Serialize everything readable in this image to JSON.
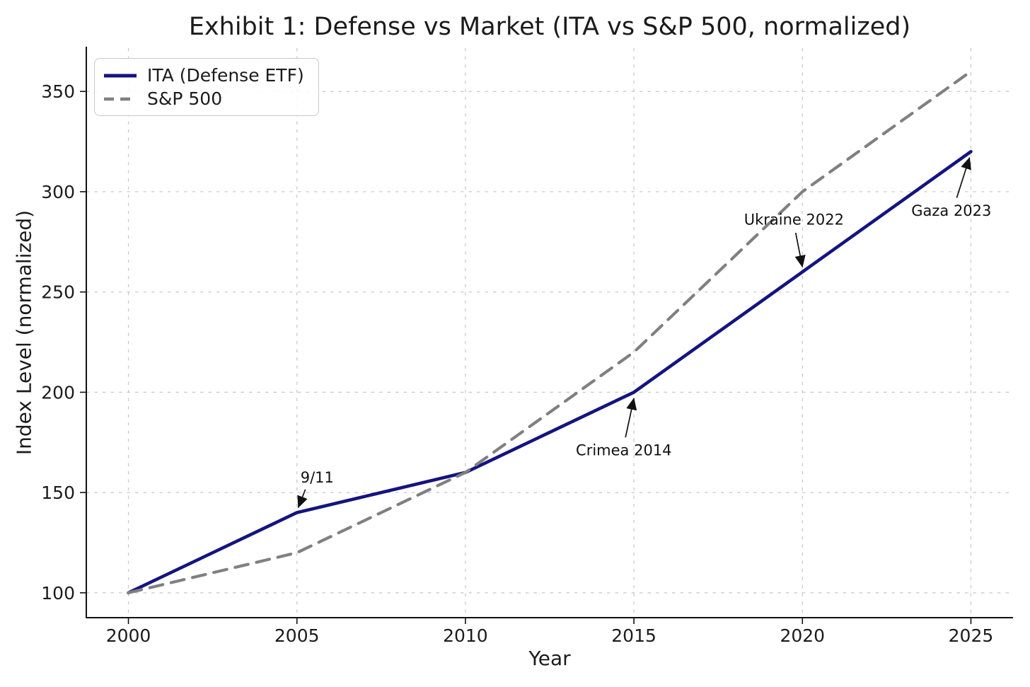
{
  "figure": {
    "title": "Exhibit 1: Defense vs Market (ITA vs S&P 500, normalized)",
    "background": "#ffffff"
  },
  "chart_data": {
    "type": "line",
    "title": "Exhibit 1: Defense vs Market (ITA vs S&P 500, normalized)",
    "xlabel": "Year",
    "ylabel": "Index Level (normalized)",
    "x": [
      2000,
      2005,
      2010,
      2015,
      2020,
      2025
    ],
    "series": [
      {
        "name": "ITA (Defense ETF)",
        "values": [
          100,
          140,
          160,
          200,
          260,
          320
        ],
        "color": "#14147f",
        "style": "solid"
      },
      {
        "name": "S&P 500",
        "values": [
          100,
          120,
          160,
          220,
          300,
          360
        ],
        "color": "#808080",
        "style": "dashed"
      }
    ],
    "xticks": [
      2000,
      2005,
      2010,
      2015,
      2020,
      2025
    ],
    "yticks": [
      100,
      150,
      200,
      250,
      300,
      350
    ],
    "xlim": [
      1998.75,
      2026.25
    ],
    "ylim": [
      87.6,
      371.6
    ],
    "grid": true,
    "grid_color": "#c7c7c7",
    "legend_position": "upper left",
    "annotations": [
      {
        "text": "9/11",
        "label_at": [
          2005.6,
          157.5
        ],
        "arrow_from": [
          2005.25,
          151.5
        ],
        "arrow_to": [
          2005.04,
          142.5
        ]
      },
      {
        "text": "Crimea 2014",
        "label_at": [
          2014.7,
          171.0
        ],
        "arrow_from": [
          2014.75,
          177.5
        ],
        "arrow_to": [
          2015.0,
          197.0
        ]
      },
      {
        "text": "Ukraine 2022",
        "label_at": [
          2019.75,
          286.0
        ],
        "arrow_from": [
          2019.8,
          279.5
        ],
        "arrow_to": [
          2020.0,
          262.5
        ]
      },
      {
        "text": "Gaza 2023",
        "label_at": [
          2024.42,
          290.5
        ],
        "arrow_from": [
          2024.58,
          297.0
        ],
        "arrow_to": [
          2024.96,
          317.0
        ]
      }
    ]
  }
}
